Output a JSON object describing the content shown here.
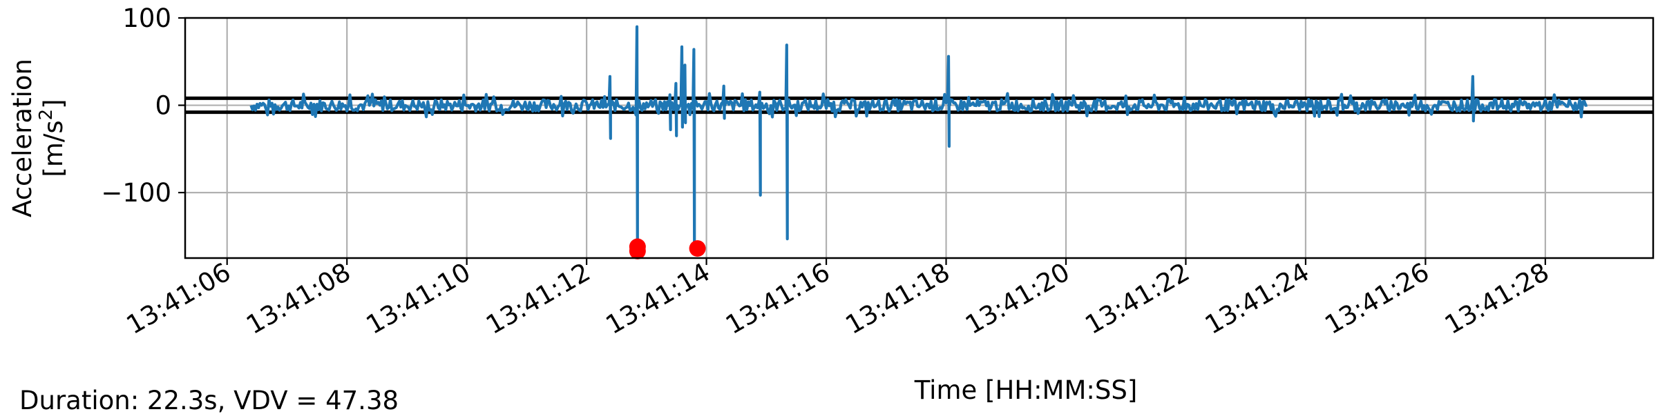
{
  "chart_data": {
    "type": "line",
    "xlabel": "Time [HH:MM:SS]",
    "ylabel_line1": "Acceleration",
    "ylabel_line2_prefix": "[m/s",
    "ylabel_line2_sup": "2",
    "ylabel_line2_suffix": "]",
    "x_tick_labels": [
      "13:41:06",
      "13:41:08",
      "13:41:10",
      "13:41:12",
      "13:41:14",
      "13:41:16",
      "13:41:18",
      "13:41:20",
      "13:41:22",
      "13:41:24",
      "13:41:26",
      "13:41:28"
    ],
    "x_ticks_seconds": [
      6,
      8,
      10,
      12,
      14,
      16,
      18,
      20,
      22,
      24,
      26,
      28
    ],
    "xlim_seconds": [
      5.3,
      29.8
    ],
    "y_ticks": [
      100,
      0,
      -100
    ],
    "y_tick_labels": [
      "100",
      "0",
      "−100"
    ],
    "ylim": [
      -175,
      100
    ],
    "grid": true,
    "threshold_lines": [
      8,
      -8
    ],
    "series": [
      {
        "color": "#1f77b4",
        "baseline_range": [
          6.4,
          28.7
        ],
        "noise_amplitude": 9,
        "spikes": [
          {
            "t": 12.4,
            "min": -38,
            "max": 33
          },
          {
            "t": 12.85,
            "min": -170,
            "max": 90
          },
          {
            "t": 13.4,
            "min": -28,
            "max": 12
          },
          {
            "t": 13.5,
            "min": -35,
            "max": 25
          },
          {
            "t": 13.6,
            "min": -25,
            "max": 67
          },
          {
            "t": 13.65,
            "min": -20,
            "max": 46
          },
          {
            "t": 13.8,
            "min": -165,
            "max": 64
          },
          {
            "t": 14.3,
            "min": -15,
            "max": 22
          },
          {
            "t": 14.9,
            "min": -103,
            "max": 15
          },
          {
            "t": 15.35,
            "min": -153,
            "max": 69
          },
          {
            "t": 18.05,
            "min": -47,
            "max": 56
          },
          {
            "t": 26.8,
            "min": -18,
            "max": 33
          }
        ]
      }
    ],
    "markers": [
      {
        "t": 12.85,
        "y": -162
      },
      {
        "t": 12.85,
        "y": -167
      },
      {
        "t": 13.85,
        "y": -164
      }
    ],
    "marker_color": "#ff0000",
    "axes_color": "#000000",
    "grid_color": "#b0b0b0"
  },
  "footer": {
    "text": "Duration: 22.3s, VDV = 47.38"
  }
}
